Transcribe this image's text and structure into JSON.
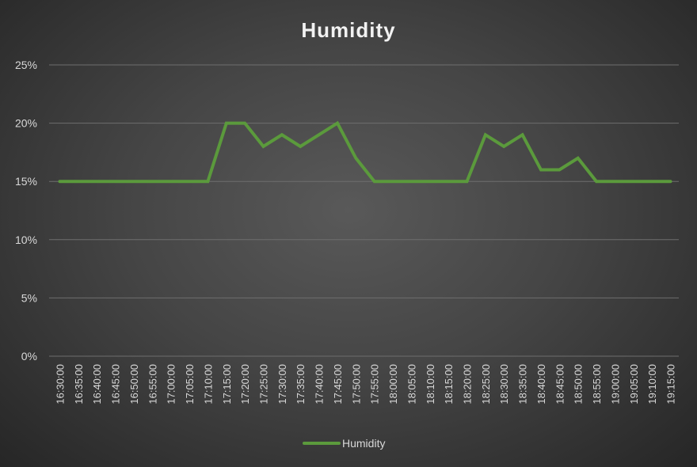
{
  "chart_data": {
    "type": "line",
    "title": "Humidity",
    "xlabel": "",
    "ylabel": "",
    "ylim": [
      0,
      0.25
    ],
    "yticks": [
      "0%",
      "5%",
      "10%",
      "15%",
      "20%",
      "25%"
    ],
    "grid": true,
    "legend_position": "bottom",
    "categories": [
      "16:30:00",
      "16:35:00",
      "16:40:00",
      "16:45:00",
      "16:50:00",
      "16:55:00",
      "17:00:00",
      "17:05:00",
      "17:10:00",
      "17:15:00",
      "17:20:00",
      "17:25:00",
      "17:30:00",
      "17:35:00",
      "17:40:00",
      "17:45:00",
      "17:50:00",
      "17:55:00",
      "18:00:00",
      "18:05:00",
      "18:10:00",
      "18:15:00",
      "18:20:00",
      "18:25:00",
      "18:30:00",
      "18:35:00",
      "18:40:00",
      "18:45:00",
      "18:50:00",
      "18:55:00",
      "19:00:00",
      "19:05:00",
      "19:10:00",
      "19:15:00"
    ],
    "series": [
      {
        "name": "Humidity",
        "color": "#5b9a3c",
        "values": [
          0.15,
          0.15,
          0.15,
          0.15,
          0.15,
          0.15,
          0.15,
          0.15,
          0.15,
          0.2,
          0.2,
          0.18,
          0.19,
          0.18,
          0.19,
          0.2,
          0.17,
          0.15,
          0.15,
          0.15,
          0.15,
          0.15,
          0.15,
          0.19,
          0.18,
          0.19,
          0.16,
          0.16,
          0.17,
          0.15,
          0.15,
          0.15,
          0.15,
          0.15
        ]
      }
    ],
    "colors": {
      "grid": "#6e6e6e",
      "text": "#d9d9d9",
      "title": "#f2f2f2"
    }
  }
}
